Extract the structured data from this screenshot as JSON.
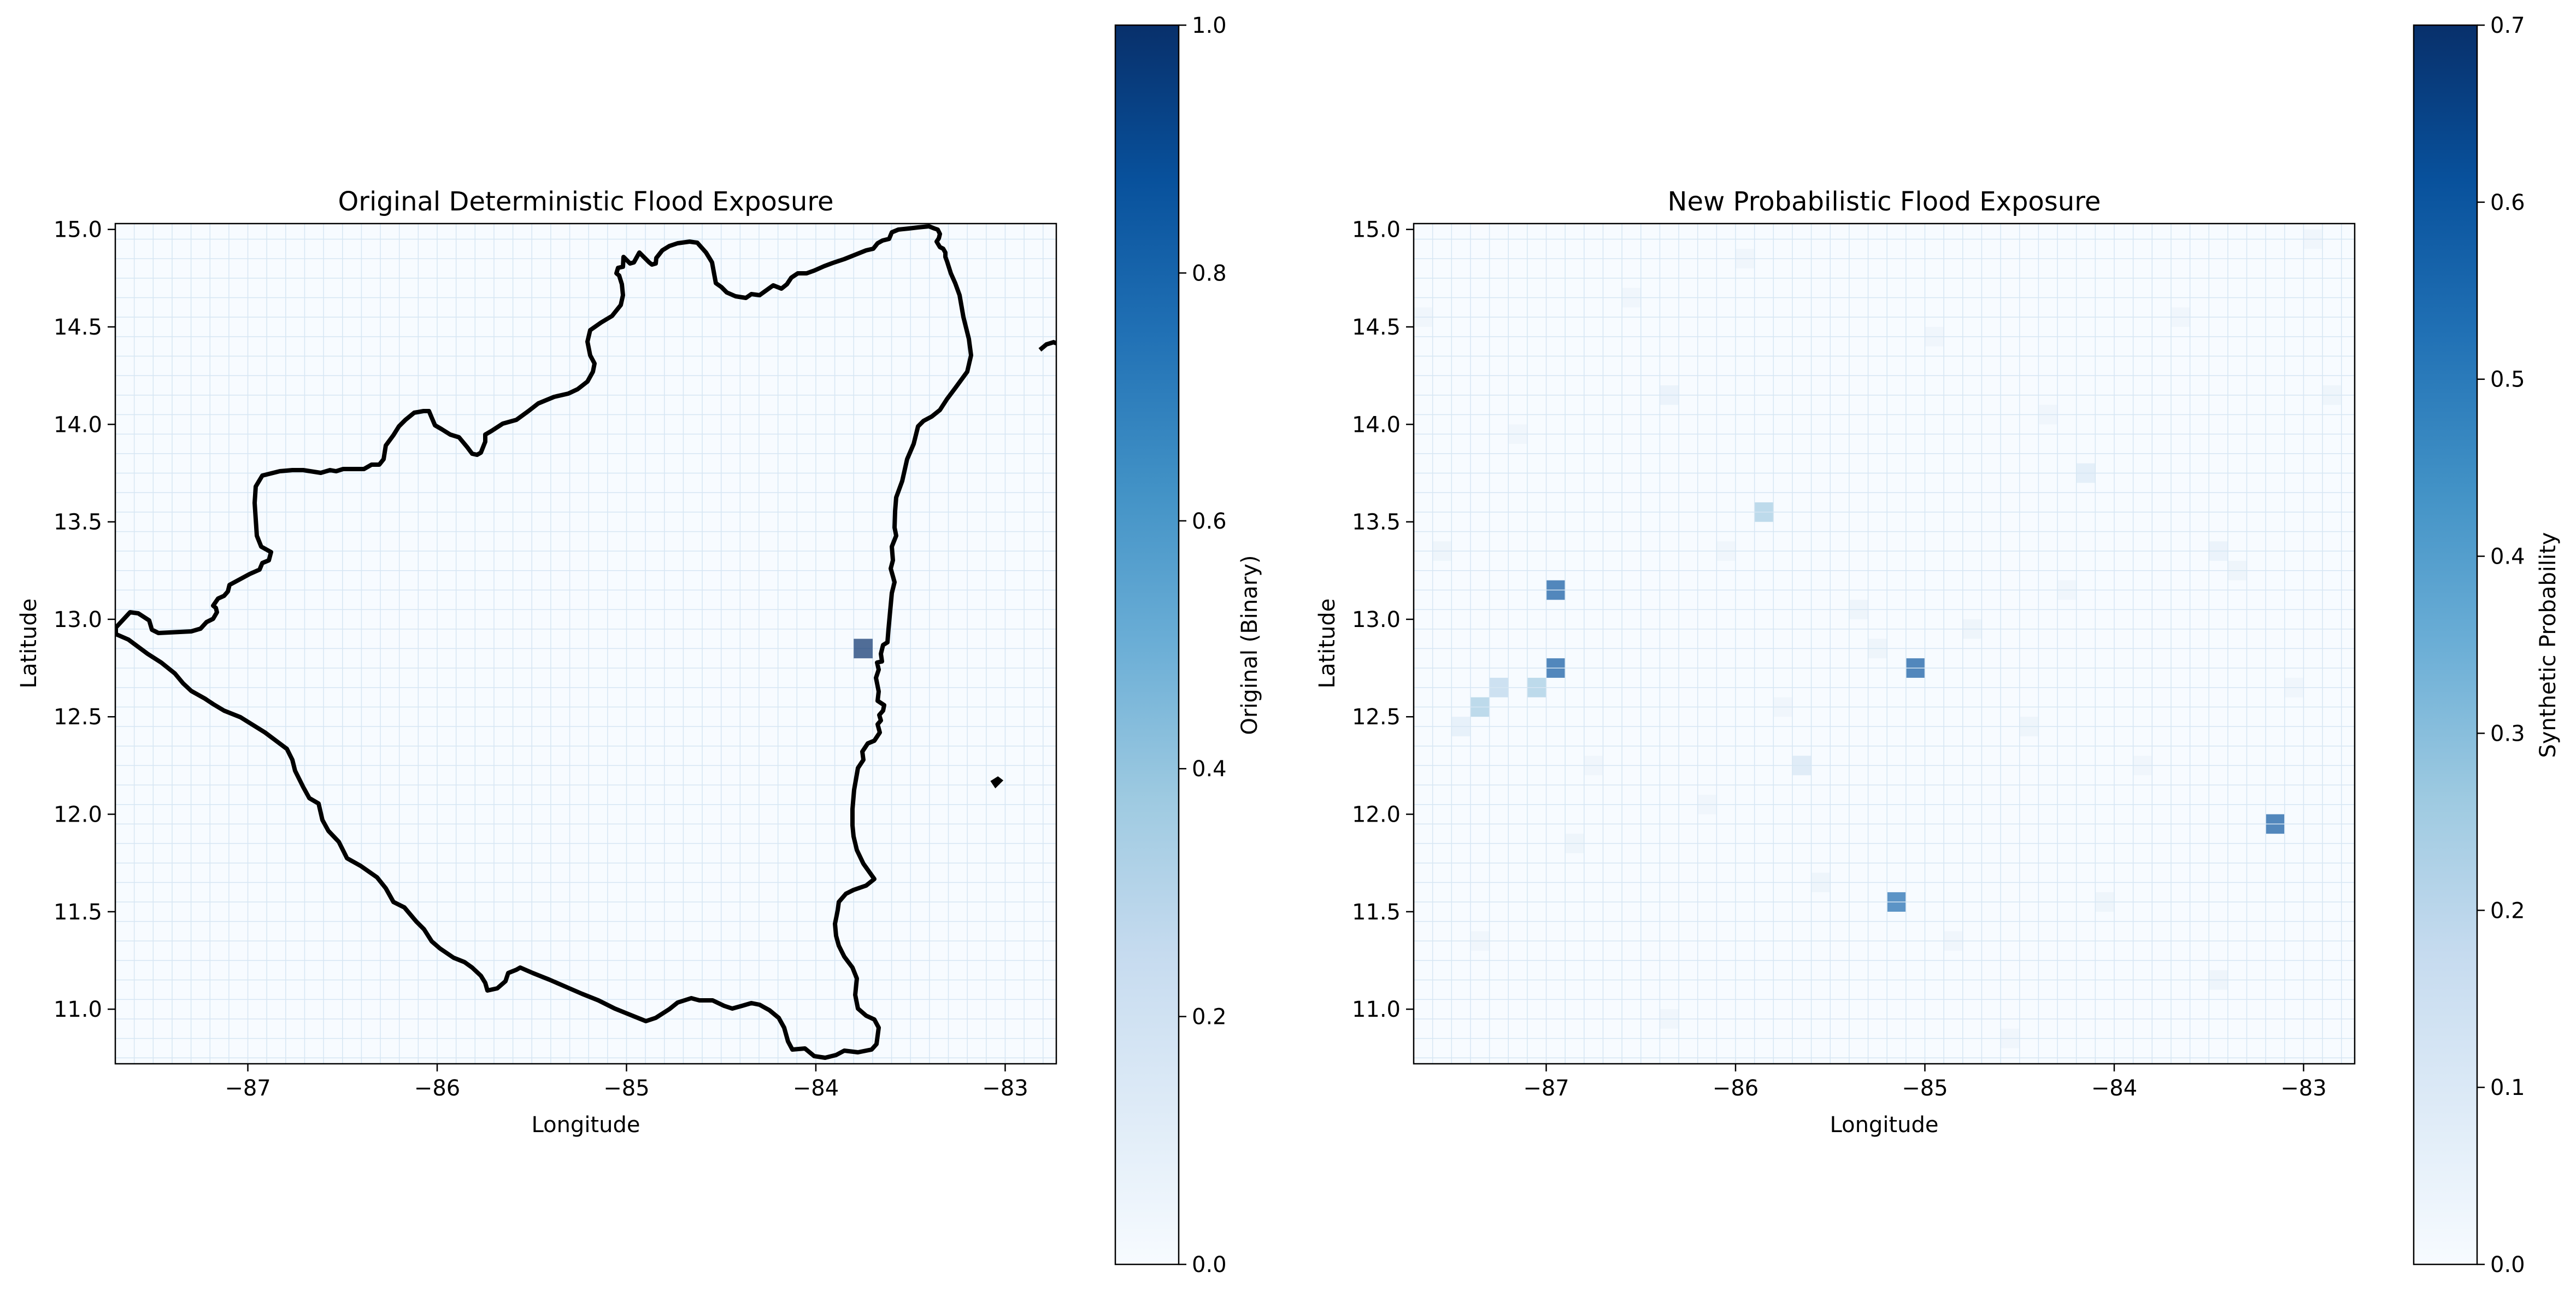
{
  "chart_data": [
    {
      "type": "heatmap",
      "title": "Original Deterministic Flood Exposure",
      "xlabel": "Longitude",
      "ylabel": "Latitude",
      "xlim": [
        -87.7,
        -82.73
      ],
      "ylim": [
        10.72,
        15.03
      ],
      "xticks": [
        -87,
        -86,
        -85,
        -84,
        -83
      ],
      "yticks": [
        11.0,
        11.5,
        12.0,
        12.5,
        13.0,
        13.5,
        14.0,
        14.5,
        15.0
      ],
      "xtick_labels": [
        "−87",
        "−86",
        "−85",
        "−84",
        "−83"
      ],
      "ytick_labels": [
        "11.0",
        "11.5",
        "12.0",
        "12.5",
        "13.0",
        "13.5",
        "14.0",
        "14.5",
        "15.0"
      ],
      "grid_resolution_deg": 0.1,
      "colormap": "Blues",
      "colorbar": {
        "label": "Original (Binary)",
        "range": [
          0,
          1.0
        ],
        "ticks": [
          0.0,
          0.2,
          0.4,
          0.6,
          0.8,
          1.0
        ],
        "tick_labels": [
          "0.0",
          "0.2",
          "0.4",
          "0.6",
          "0.8",
          "1.0"
        ]
      },
      "cells": [
        {
          "lon": -83.75,
          "lat": 12.85,
          "value": 1.0
        }
      ]
    },
    {
      "type": "heatmap",
      "title": "New Probabilistic Flood Exposure",
      "xlabel": "Longitude",
      "ylabel": "Latitude",
      "xlim": [
        -87.7,
        -82.73
      ],
      "ylim": [
        10.72,
        15.03
      ],
      "xticks": [
        -87,
        -86,
        -85,
        -84,
        -83
      ],
      "yticks": [
        11.0,
        11.5,
        12.0,
        12.5,
        13.0,
        13.5,
        14.0,
        14.5,
        15.0
      ],
      "xtick_labels": [
        "−87",
        "−86",
        "−85",
        "−84",
        "−83"
      ],
      "ytick_labels": [
        "11.0",
        "11.5",
        "12.0",
        "12.5",
        "13.0",
        "13.5",
        "14.0",
        "14.5",
        "15.0"
      ],
      "grid_resolution_deg": 0.1,
      "colormap": "Blues",
      "colorbar": {
        "label": "Synthetic Probability",
        "range": [
          0,
          0.7
        ],
        "ticks": [
          0.0,
          0.1,
          0.2,
          0.3,
          0.4,
          0.5,
          0.6,
          0.7
        ],
        "tick_labels": [
          "0.0",
          "0.1",
          "0.2",
          "0.3",
          "0.4",
          "0.5",
          "0.6",
          "0.7"
        ]
      },
      "cells": [
        {
          "lon": -86.95,
          "lat": 13.15,
          "value": 0.6
        },
        {
          "lon": -86.95,
          "lat": 12.75,
          "value": 0.6
        },
        {
          "lon": -85.05,
          "lat": 12.75,
          "value": 0.6
        },
        {
          "lon": -83.15,
          "lat": 11.95,
          "value": 0.6
        },
        {
          "lon": -85.15,
          "lat": 11.55,
          "value": 0.55
        },
        {
          "lon": -85.85,
          "lat": 13.55,
          "value": 0.25
        },
        {
          "lon": -87.35,
          "lat": 12.55,
          "value": 0.25
        },
        {
          "lon": -87.25,
          "lat": 12.65,
          "value": 0.2
        },
        {
          "lon": -87.05,
          "lat": 12.65,
          "value": 0.25
        },
        {
          "lon": -85.65,
          "lat": 12.25,
          "value": 0.12
        },
        {
          "lon": -84.15,
          "lat": 13.75,
          "value": 0.1
        },
        {
          "lon": -87.45,
          "lat": 12.45,
          "value": 0.08
        },
        {
          "lon": -87.55,
          "lat": 13.35,
          "value": 0.05
        },
        {
          "lon": -86.35,
          "lat": 14.15,
          "value": 0.06
        },
        {
          "lon": -85.35,
          "lat": 13.05,
          "value": 0.05
        },
        {
          "lon": -83.45,
          "lat": 13.35,
          "value": 0.06
        },
        {
          "lon": -83.35,
          "lat": 13.25,
          "value": 0.05
        },
        {
          "lon": -82.85,
          "lat": 14.15,
          "value": 0.05
        },
        {
          "lon": -84.75,
          "lat": 12.95,
          "value": 0.05
        },
        {
          "lon": -85.25,
          "lat": 12.85,
          "value": 0.05
        },
        {
          "lon": -84.45,
          "lat": 12.45,
          "value": 0.05
        },
        {
          "lon": -86.85,
          "lat": 11.85,
          "value": 0.05
        },
        {
          "lon": -85.55,
          "lat": 11.65,
          "value": 0.05
        },
        {
          "lon": -84.05,
          "lat": 11.55,
          "value": 0.05
        },
        {
          "lon": -83.45,
          "lat": 11.15,
          "value": 0.05
        },
        {
          "lon": -86.55,
          "lat": 14.65,
          "value": 0.04
        },
        {
          "lon": -84.95,
          "lat": 14.45,
          "value": 0.04
        },
        {
          "lon": -82.95,
          "lat": 14.95,
          "value": 0.04
        },
        {
          "lon": -87.65,
          "lat": 14.55,
          "value": 0.04
        },
        {
          "lon": -86.15,
          "lat": 12.05,
          "value": 0.04
        },
        {
          "lon": -84.85,
          "lat": 11.35,
          "value": 0.04
        },
        {
          "lon": -86.35,
          "lat": 10.95,
          "value": 0.04
        },
        {
          "lon": -84.55,
          "lat": 10.85,
          "value": 0.04
        },
        {
          "lon": -83.85,
          "lat": 12.25,
          "value": 0.04
        },
        {
          "lon": -86.05,
          "lat": 13.35,
          "value": 0.04
        },
        {
          "lon": -87.15,
          "lat": 13.95,
          "value": 0.04
        },
        {
          "lon": -85.95,
          "lat": 14.85,
          "value": 0.04
        },
        {
          "lon": -83.65,
          "lat": 14.55,
          "value": 0.04
        },
        {
          "lon": -84.35,
          "lat": 14.05,
          "value": 0.04
        },
        {
          "lon": -85.75,
          "lat": 12.55,
          "value": 0.04
        },
        {
          "lon": -83.05,
          "lat": 12.65,
          "value": 0.04
        },
        {
          "lon": -87.35,
          "lat": 11.35,
          "value": 0.04
        },
        {
          "lon": -86.75,
          "lat": 12.25,
          "value": 0.04
        },
        {
          "lon": -84.25,
          "lat": 13.15,
          "value": 0.04
        }
      ]
    }
  ]
}
